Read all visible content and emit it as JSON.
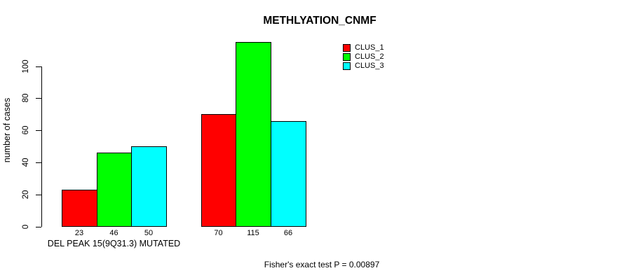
{
  "title": "METHLYATION_CNMF",
  "y_axis": {
    "label": "number of cases"
  },
  "footer": {
    "caption": "Fisher's exact test P = 0.00897"
  },
  "chart_data": {
    "type": "bar",
    "title": "METHLYATION_CNMF",
    "xlabel": "",
    "ylabel": "number of cases",
    "ylim": [
      0,
      100
    ],
    "yticks": [
      0,
      20,
      40,
      60,
      80,
      100
    ],
    "grid": false,
    "legend_position": "top-right",
    "groups": [
      "DEL PEAK 15(9Q31.3) MUTATED",
      ""
    ],
    "series": [
      {
        "name": "CLUS_1",
        "color": "#ff0000",
        "values": [
          23,
          70
        ]
      },
      {
        "name": "CLUS_2",
        "color": "#00ff00",
        "values": [
          46,
          115
        ]
      },
      {
        "name": "CLUS_3",
        "color": "#00ffff",
        "values": [
          50,
          66
        ]
      }
    ],
    "bar_value_labels": true,
    "annotations": [
      "Fisher's exact test P = 0.00897"
    ]
  }
}
